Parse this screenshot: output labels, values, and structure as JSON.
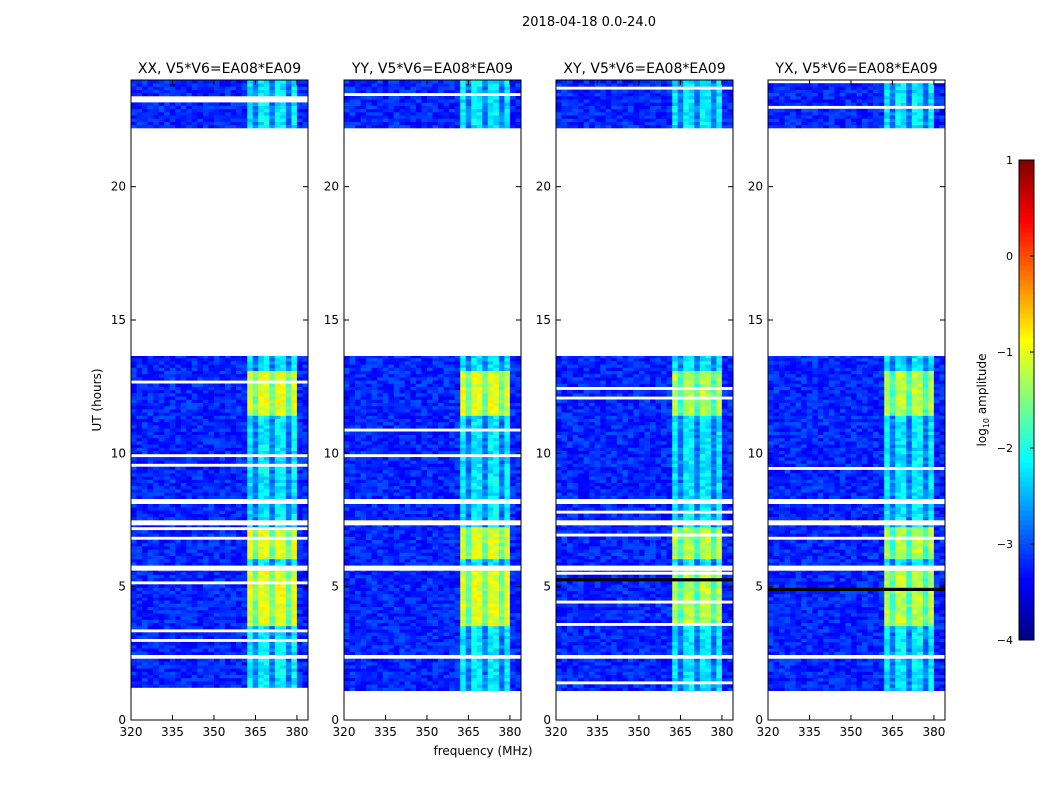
{
  "chart_data": {
    "type": "heatmap",
    "suptitle": "2018-04-18 0.0-24.0",
    "xlabel": "frequency (MHz)",
    "ylabel": "UT (hours)",
    "xlim": [
      320,
      384
    ],
    "ylim": [
      0,
      24
    ],
    "xticks": [
      320,
      335,
      350,
      365,
      380
    ],
    "yticks": [
      0,
      5,
      10,
      15,
      20
    ],
    "panels": [
      {
        "title": "XX, V5*V6=EA08*EA09"
      },
      {
        "title": "YY, V5*V6=EA08*EA09"
      },
      {
        "title": "XY, V5*V6=EA08*EA09"
      },
      {
        "title": "YX, V5*V6=EA08*EA09"
      }
    ],
    "data_segments_hours": [
      [
        1.1,
        2.3
      ],
      [
        2.45,
        5.6
      ],
      [
        5.8,
        7.3
      ],
      [
        7.5,
        8.1
      ],
      [
        8.3,
        13.65
      ],
      [
        22.2,
        24.0
      ]
    ],
    "rfi_band_mhz": [
      362,
      380
    ],
    "strong_rfi_periods_hours": [
      [
        3.5,
        5.6
      ],
      [
        6.0,
        7.2
      ],
      [
        11.4,
        13.0
      ]
    ],
    "typical_level": {
      "background": -3.2,
      "rfi_band": -2.2,
      "strong_rfi": -1.0
    },
    "colorbar": {
      "label": "log10 amplitude",
      "label_main": "log",
      "label_sub": "10",
      "label_rest": " amplitude",
      "range": [
        -4,
        1
      ],
      "ticks": [
        "1",
        "0",
        "−1",
        "−2",
        "−3",
        "−4"
      ],
      "tick_values": [
        1,
        0,
        -1,
        -2,
        -3,
        -4
      ],
      "colormap": "jet"
    }
  }
}
